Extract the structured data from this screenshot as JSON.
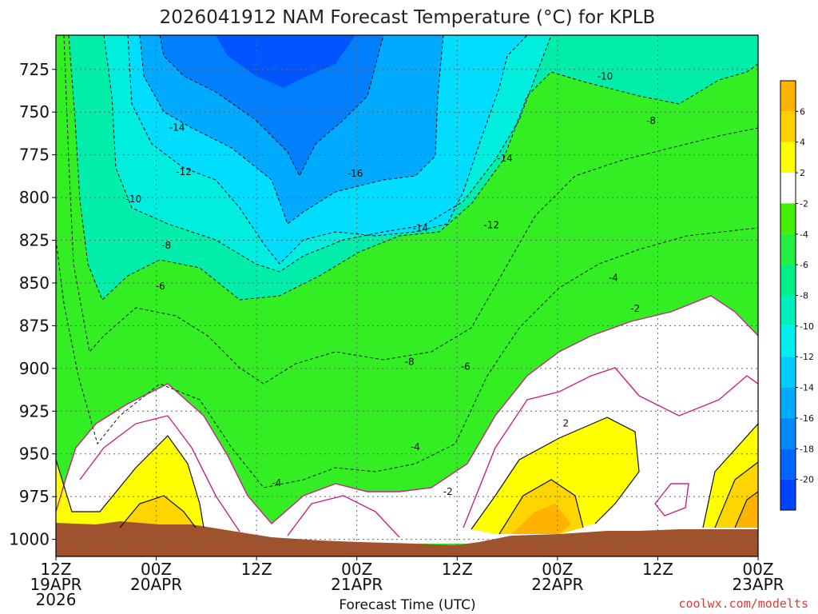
{
  "chart_data": {
    "type": "contour",
    "title": "2026041912 NAM Forecast Temperature (°C) for KPLB",
    "xlabel": "Forecast Time (UTC)",
    "ylabel": "",
    "x_tick_labels": [
      {
        "hours": 0,
        "lines": [
          "12Z",
          "19APR",
          "2026"
        ]
      },
      {
        "hours": 12,
        "lines": [
          "00Z",
          "20APR"
        ]
      },
      {
        "hours": 24,
        "lines": [
          "12Z"
        ]
      },
      {
        "hours": 36,
        "lines": [
          "00Z",
          "21APR"
        ]
      },
      {
        "hours": 48,
        "lines": [
          "12Z"
        ]
      },
      {
        "hours": 60,
        "lines": [
          "00Z",
          "22APR"
        ]
      },
      {
        "hours": 72,
        "lines": [
          "12Z"
        ]
      },
      {
        "hours": 84,
        "lines": [
          "00Z",
          "23APR"
        ]
      }
    ],
    "xlim_hours": [
      0,
      84
    ],
    "y_axis": {
      "unit": "hPa",
      "ticks": [
        725,
        750,
        775,
        800,
        825,
        850,
        875,
        900,
        925,
        950,
        975,
        1000
      ],
      "top": 705,
      "bottom": 1010
    },
    "grid": true,
    "colorbar": {
      "placement": "right",
      "ticks": [
        "6",
        "4",
        "2",
        "-2",
        "-4",
        "-6",
        "-8",
        "-10",
        "-12",
        "-14",
        "-16",
        "-18",
        "-20"
      ],
      "colors": [
        "#ffb300",
        "#ffd000",
        "#ffff00",
        "#ffffff",
        "#44ee00",
        "#22ee44",
        "#00ee88",
        "#00eebb",
        "#00eeee",
        "#00ccff",
        "#00aaff",
        "#0088ff",
        "#0066ff",
        "#0044ff"
      ]
    },
    "contour_labels": [
      {
        "text": "-14",
        "hours": 14.5,
        "hPa": 759
      },
      {
        "text": "-12",
        "hours": 15.3,
        "hPa": 785
      },
      {
        "text": "-10",
        "hours": 9.3,
        "hPa": 801
      },
      {
        "text": "-8",
        "hours": 13.2,
        "hPa": 828
      },
      {
        "text": "-6",
        "hours": 12.5,
        "hPa": 852
      },
      {
        "text": "-16",
        "hours": 35.8,
        "hPa": 786
      },
      {
        "text": "-14",
        "hours": 43.6,
        "hPa": 818
      },
      {
        "text": "-12",
        "hours": 52.1,
        "hPa": 816
      },
      {
        "text": "-14",
        "hours": 53.7,
        "hPa": 777
      },
      {
        "text": "-10",
        "hours": 65.7,
        "hPa": 729
      },
      {
        "text": "-8",
        "hours": 71.2,
        "hPa": 755
      },
      {
        "text": "-4",
        "hours": 66.7,
        "hPa": 847
      },
      {
        "text": "-2",
        "hours": 69.3,
        "hPa": 865
      },
      {
        "text": "-8",
        "hours": 42.3,
        "hPa": 896
      },
      {
        "text": "-6",
        "hours": 49.0,
        "hPa": 899
      },
      {
        "text": "-4",
        "hours": 43.0,
        "hPa": 946
      },
      {
        "text": "-2",
        "hours": 46.9,
        "hPa": 972
      },
      {
        "text": "-4",
        "hours": 26.4,
        "hPa": 967
      },
      {
        "text": "2",
        "hours": 61.0,
        "hPa": 932
      }
    ],
    "isotherm_colors": {
      "minus2": "#cc2288",
      "zero": "#000000",
      "positive": "#000000"
    },
    "terrain_color": "#a0522d"
  },
  "credit": "coolwx.com/modelts"
}
